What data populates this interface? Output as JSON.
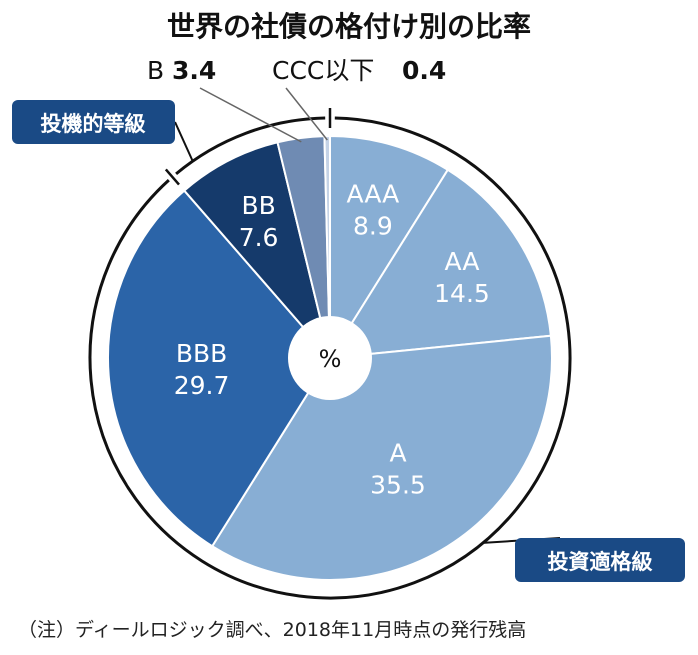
{
  "chart_data": {
    "type": "pie",
    "title": "世界の社債の格付け別の比率",
    "center_label": "%",
    "categories": [
      "AAA",
      "AA",
      "A",
      "BBB",
      "BB",
      "B",
      "CCC以下"
    ],
    "values": [
      8.9,
      14.5,
      35.5,
      29.7,
      7.6,
      3.4,
      0.4
    ],
    "value_labels": [
      "8.9",
      "14.5",
      "35.5",
      "29.7",
      "7.6",
      "3.4",
      "0.4"
    ],
    "slice_colors": [
      "#88aed4",
      "#88aed4",
      "#88aed4",
      "#2b64a8",
      "#153a6b",
      "#6f8bb3",
      "#c5d3e6"
    ],
    "groups": [
      {
        "label": "投資適格級",
        "categories": [
          "AAA",
          "AA",
          "A",
          "BBB"
        ]
      },
      {
        "label": "投機的等級",
        "categories": [
          "BB",
          "B",
          "CCC以下"
        ]
      }
    ],
    "external_labels": [
      "B",
      "CCC以下"
    ],
    "note": "（注）ディールロジック調べ、2018年11月時点の発行残高"
  }
}
